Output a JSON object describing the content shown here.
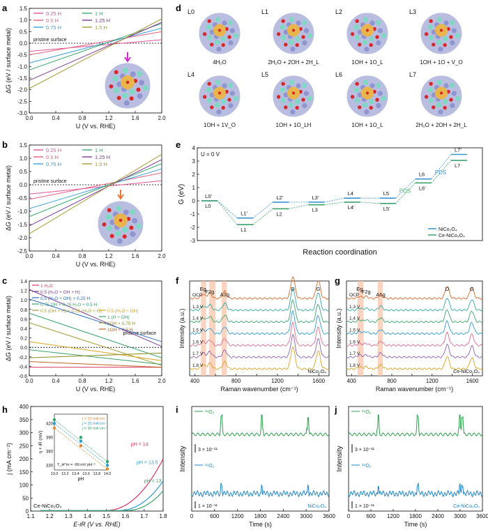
{
  "panels": {
    "a": "a",
    "b": "b",
    "c": "c",
    "d": "d",
    "e": "e",
    "f": "f",
    "g": "g",
    "h": "h",
    "i": "i",
    "j": "j"
  },
  "colors": {
    "h025": "#e0559a",
    "h05": "#e4607f",
    "h075": "#3a9fd8",
    "h1": "#3daa6f",
    "h125": "#7e3a97",
    "h15": "#a89a36",
    "nico": "#3a93d0",
    "ce": "#3da06a",
    "pds": "#55b56a",
    "raman": [
      "#d9a221",
      "#8d5fb2",
      "#e5668f",
      "#2f9bd5",
      "#3aa56c",
      "#33a9a2",
      "#d86a2e"
    ],
    "band": "#f6c3a6",
    "c_o2": "#2d9e4c",
    "c_nico": "#1f86c8"
  },
  "chart_data": [
    {
      "id": "a",
      "type": "line",
      "xlabel": "U (V vs. RHE)",
      "ylabel": "ΔG (eV / surface metal)",
      "xlim": [
        0.0,
        2.0
      ],
      "ylim": [
        -3.0,
        1.5
      ],
      "xticks": [
        "0.0",
        "0.4",
        "0.8",
        "1.2",
        "1.6",
        "2.0"
      ],
      "yticks": [
        "-3.0",
        "-2.5",
        "-2.0",
        "-1.5",
        "-1.0",
        "-0.5",
        "0.0",
        "0.5",
        "1.0",
        "1.5"
      ],
      "reference_label": "pristine surface",
      "legend": [
        "0.25 H",
        "0.5 H",
        "0.75 H",
        "1 H",
        "1.25 H",
        "1.5 H"
      ],
      "series": [
        {
          "name": "0.25 H",
          "x": [
            0,
            2
          ],
          "y": [
            -0.35,
            0.15
          ]
        },
        {
          "name": "0.5 H",
          "x": [
            0,
            2
          ],
          "y": [
            -0.5,
            0.5
          ]
        },
        {
          "name": "0.75 H",
          "x": [
            0,
            2
          ],
          "y": [
            -0.85,
            0.65
          ]
        },
        {
          "name": "1 H",
          "x": [
            0,
            2
          ],
          "y": [
            -1.15,
            0.85
          ]
        },
        {
          "name": "1.25 H",
          "x": [
            0,
            2
          ],
          "y": [
            -1.6,
            0.9
          ]
        },
        {
          "name": "1.5 H",
          "x": [
            0,
            2
          ],
          "y": [
            -1.95,
            1.05
          ]
        }
      ]
    },
    {
      "id": "b",
      "type": "line",
      "xlabel": "U (V vs. RHE)",
      "ylabel": "ΔG (eV / surface metal)",
      "xlim": [
        0.0,
        2.0
      ],
      "ylim": [
        -2.5,
        1.5
      ],
      "xticks": [
        "0.0",
        "0.4",
        "0.8",
        "1.2",
        "1.6",
        "2.0"
      ],
      "yticks": [
        "-2.5",
        "-2.0",
        "-1.5",
        "-1.0",
        "-0.5",
        "0.0",
        "0.5",
        "1.0",
        "1.5"
      ],
      "reference_label": "pristine surface",
      "legend": [
        "0.25 H",
        "0.5 H",
        "0.75 H",
        "1 H",
        "1.25 H",
        "1.5 H"
      ],
      "series": [
        {
          "name": "0.25 H",
          "x": [
            0,
            2
          ],
          "y": [
            -0.35,
            0.15
          ]
        },
        {
          "name": "0.5 H",
          "x": [
            0,
            2
          ],
          "y": [
            -0.55,
            0.45
          ]
        },
        {
          "name": "0.75 H",
          "x": [
            0,
            2
          ],
          "y": [
            -0.9,
            0.6
          ]
        },
        {
          "name": "1 H",
          "x": [
            0,
            2
          ],
          "y": [
            -1.2,
            0.8
          ]
        },
        {
          "name": "1.25 H",
          "x": [
            0,
            2
          ],
          "y": [
            -1.55,
            0.95
          ]
        },
        {
          "name": "1.5 H",
          "x": [
            0,
            2
          ],
          "y": [
            -1.85,
            1.15
          ]
        }
      ]
    },
    {
      "id": "c",
      "type": "line",
      "xlabel": "U (V vs. RHE)",
      "ylabel": "ΔG (eV / surface metal)",
      "xlim": [
        0.0,
        2.0
      ],
      "ylim": [
        -0.6,
        1.4
      ],
      "xticks": [
        "0.0",
        "0.4",
        "0.8",
        "1.2",
        "1.6",
        "2.0"
      ],
      "yticks": [
        "-0.6",
        "-0.4",
        "-0.2",
        "0.0",
        "0.2",
        "0.4",
        "0.6",
        "0.8",
        "1.0",
        "1.2",
        "1.4"
      ],
      "reference_label": "pristine surface",
      "legend": [
        "1 H₂O",
        "0.5 (H₂O + OH + H)",
        "0.5 (H₂O + OH) + 0.25 H",
        "0.75 OH + 0.25 H₂O + 0.5 H",
        "0.5 (OH + H) + 0.25 (H₂O + O)",
        "0.5 (H₂O + OH)",
        "1 (H + OH)",
        "1OH + 0.75 H",
        "1OH + 0.5 H"
      ],
      "series": [
        {
          "name": "1 H₂O",
          "x": [
            0,
            2
          ],
          "y": [
            -0.42,
            -0.42
          ]
        },
        {
          "name": "0.5 (H₂O + OH + H)",
          "x": [
            0,
            2
          ],
          "y": [
            1.22,
            0.02
          ]
        },
        {
          "name": "0.5 (H₂O + OH) + 0.25 H",
          "x": [
            0,
            2
          ],
          "y": [
            1.02,
            0.12
          ]
        },
        {
          "name": "0.75 OH + 0.25 H₂O + 0.5 H",
          "x": [
            0,
            2
          ],
          "y": [
            0.72,
            -0.22
          ]
        },
        {
          "name": "0.5 (OH + H) + 0.25 (H₂O + O)",
          "x": [
            0,
            2
          ],
          "y": [
            0.52,
            -0.38
          ]
        },
        {
          "name": "0.5 (H₂O + OH)",
          "x": [
            0,
            2
          ],
          "y": [
            0.12,
            -0.28
          ]
        },
        {
          "name": "1 (H + OH)",
          "x": [
            0,
            2
          ],
          "y": [
            -0.05,
            -0.36
          ]
        },
        {
          "name": "1OH + 0.75 H",
          "x": [
            0,
            2
          ],
          "y": [
            -0.22,
            -0.12
          ]
        },
        {
          "name": "1OH + 0.5 H",
          "x": [
            0,
            2
          ],
          "y": [
            -0.3,
            -0.42
          ]
        }
      ]
    },
    {
      "id": "d",
      "type": "table",
      "states": [
        {
          "id": "L0",
          "label": "4H₂O"
        },
        {
          "id": "L1",
          "label": "2H₂O + 2OH + 2H_L"
        },
        {
          "id": "L2",
          "label": "1OH + 1O_L"
        },
        {
          "id": "L3",
          "label": "1OH + 1O + V_O"
        },
        {
          "id": "L4",
          "label": "1OH + 1V_O"
        },
        {
          "id": "L5",
          "label": "1OH + 1O_LH"
        },
        {
          "id": "L6",
          "label": "1OH + 1O_L"
        },
        {
          "id": "L7",
          "label": "2H₂O + 2OH + 2H_L"
        }
      ]
    },
    {
      "id": "e",
      "type": "line",
      "annotation": "U = 0 V",
      "xlabel": "Reaction coordination",
      "ylabel": "G (eV)",
      "ylim": [
        -3,
        4
      ],
      "yticks": [
        "-3",
        "-2",
        "-1",
        "0",
        "1",
        "2",
        "3",
        "4"
      ],
      "pds_label": "PDS",
      "legend": [
        "NiCo₂O₄",
        "Ce-NiCo₂O₄"
      ],
      "series": [
        {
          "name": "NiCo₂O₄",
          "levels": [
            0,
            -1.3,
            -0.1,
            -0.1,
            0.2,
            0.2,
            1.65,
            3.5
          ]
        },
        {
          "name": "Ce-NiCo₂O₄",
          "levels": [
            0,
            -1.8,
            -0.6,
            -0.3,
            -0.1,
            -0.2,
            1.35,
            3.05
          ]
        }
      ],
      "level_labels_top": [
        "L0'",
        "L1'",
        "L2'",
        "L3'",
        "L4",
        "L5",
        "L6",
        "L7'"
      ],
      "level_labels_bottom": [
        "L0",
        "L1",
        "L2",
        "L3",
        "L4'",
        "L5'",
        "L6'",
        "L7"
      ]
    },
    {
      "id": "f",
      "type": "line",
      "xlabel": "Raman wavenumber (cm⁻¹)",
      "ylabel": "Intensity (a.u.)",
      "xlim": [
        350,
        1700
      ],
      "xticks": [
        "400",
        "600",
        "800",
        "1000",
        "1200",
        "1400",
        "1600"
      ],
      "peaks": [
        "Eg",
        "F2g",
        "A1g",
        "D",
        "G"
      ],
      "sample": "NiCo₂O₄",
      "bands": [
        [
          460,
          510
        ],
        [
          540,
          600
        ],
        [
          660,
          710
        ]
      ],
      "series": [
        {
          "name": "1.8 V",
          "peaks_cm": [
            480,
            545,
            690,
            1350,
            1595
          ]
        },
        {
          "name": "1.7 V",
          "peaks_cm": [
            480,
            545,
            690,
            1350,
            1595
          ]
        },
        {
          "name": "1.6 V",
          "peaks_cm": [
            480,
            545,
            690,
            1350,
            1595
          ]
        },
        {
          "name": "1.5 V",
          "peaks_cm": [
            480,
            545,
            690,
            1350,
            1595
          ]
        },
        {
          "name": "1.4 V",
          "peaks_cm": [
            480,
            545,
            690,
            1350,
            1595
          ]
        },
        {
          "name": "1.3 V",
          "peaks_cm": [
            480,
            545,
            690,
            1350,
            1595
          ]
        },
        {
          "name": "OCP",
          "peaks_cm": [
            480,
            545,
            690,
            1350,
            1595
          ]
        }
      ]
    },
    {
      "id": "g",
      "type": "line",
      "xlabel": "Raman wavenumber (cm⁻¹)",
      "ylabel": "Intensity (a.u.)",
      "xlim": [
        350,
        1700
      ],
      "xticks": [
        "400",
        "600",
        "800",
        "1000",
        "1200",
        "1400",
        "1600"
      ],
      "peaks": [
        "Eg",
        "F2g",
        "A1g",
        "D",
        "G"
      ],
      "sample": "Ce-NiCo₂O₄",
      "bands": [
        [
          460,
          520
        ],
        [
          660,
          710
        ]
      ],
      "series": [
        {
          "name": "1.8 V"
        },
        {
          "name": "1.7 V"
        },
        {
          "name": "1.6 V"
        },
        {
          "name": "1.5 V"
        },
        {
          "name": "1.4 V"
        },
        {
          "name": "1.3 V"
        },
        {
          "name": "OCP"
        }
      ]
    },
    {
      "id": "h",
      "type": "line",
      "xlabel": "E-iR (V vs. RHE)",
      "ylabel": "j (mA cm⁻²)",
      "xlim": [
        1.1,
        1.8
      ],
      "ylim": [
        0,
        400
      ],
      "xticks": [
        "1.1",
        "1.2",
        "1.3",
        "1.4",
        "1.5",
        "1.6",
        "1.7",
        "1.8"
      ],
      "yticks": [
        "0",
        "50",
        "100",
        "150",
        "200",
        "250",
        "300",
        "350",
        "400"
      ],
      "sample": "Ce-NiCo₂O₄",
      "series": [
        {
          "name": "pH = 14",
          "onset": 1.49
        },
        {
          "name": "pH = 13.5",
          "onset": 1.56
        },
        {
          "name": "pH = 13",
          "onset": 1.6
        }
      ],
      "inset": {
        "xlabel": "pH",
        "ylabel": "η + iR (mV)",
        "xlim": [
          13.0,
          14.0
        ],
        "ylim": [
          320,
          440
        ],
        "xticks": [
          "13.0",
          "13.2",
          "13.4",
          "13.6",
          "13.8",
          "14.0"
        ],
        "yticks": [
          "330",
          "360",
          "390",
          "420"
        ],
        "legend": [
          "j = 20 mA cm⁻²",
          "j = 25 mA cm⁻²",
          "j = 30 mA cm⁻²"
        ],
        "annotation": "T_H^m = -90 mV pH⁻¹",
        "points": [
          {
            "name": "j = 20 mA cm⁻²",
            "x": [
              13.0,
              13.5,
              14.0
            ],
            "y": [
              410,
              372,
              322
            ]
          },
          {
            "name": "j = 25 mA cm⁻²",
            "x": [
              13.0,
              13.5,
              14.0
            ],
            "y": [
              420,
              382,
              330
            ]
          },
          {
            "name": "j = 30 mA cm⁻²",
            "x": [
              13.0,
              13.5,
              14.0
            ],
            "y": [
              428,
              390,
              338
            ]
          }
        ]
      }
    },
    {
      "id": "i",
      "type": "line",
      "xlabel": "Time (s)",
      "ylabel": "Intensity",
      "xlim": [
        0,
        3600
      ],
      "xticks": [
        "0",
        "600",
        "1200",
        "1800",
        "2400",
        "3000",
        "3600"
      ],
      "series": [
        {
          "name": "³⁴O₂"
        },
        {
          "name": "³⁶O₂"
        }
      ],
      "scale_top": "3 × 10⁻¹¹",
      "scale_bottom": "1 × 10⁻¹¹",
      "sample": "NiCo₂O₄",
      "spikes_s": [
        780,
        1840,
        3050
      ]
    },
    {
      "id": "j",
      "type": "line",
      "xlabel": "Time (s)",
      "ylabel": "Intensity",
      "xlim": [
        0,
        3600
      ],
      "xticks": [
        "0",
        "600",
        "1200",
        "1800",
        "2400",
        "3000",
        "3600"
      ],
      "series": [
        {
          "name": "³⁴O₂"
        },
        {
          "name": "³⁶O₂"
        }
      ],
      "scale_top": "3 × 10⁻¹¹",
      "scale_bottom": "1 × 10⁻¹¹",
      "sample": "Ce-NiCo₂O₄",
      "spikes_s": [
        800,
        1860,
        2990,
        3060
      ]
    }
  ]
}
